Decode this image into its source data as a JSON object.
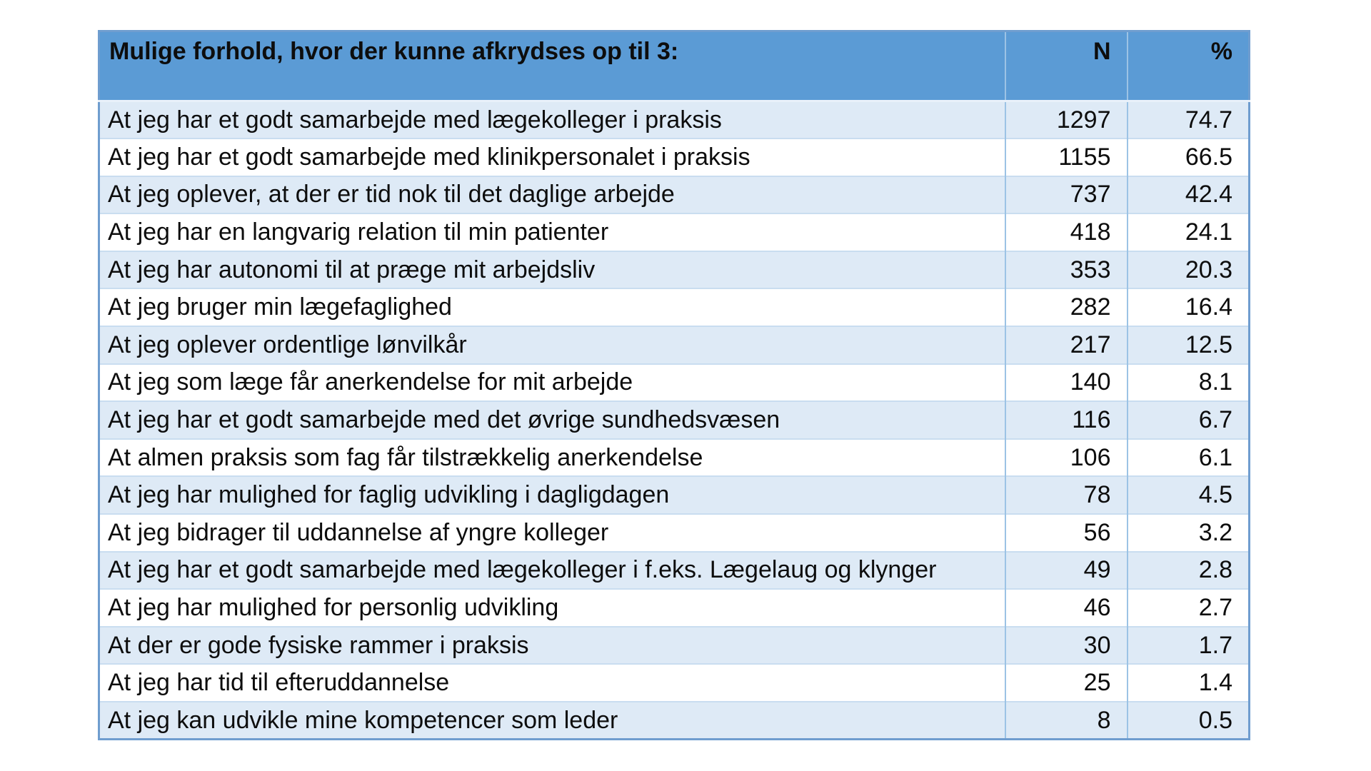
{
  "table": {
    "header": {
      "label": "Mulige forhold, hvor der kunne afkrydses op til 3:",
      "n": "N",
      "pct": "%"
    },
    "rows": [
      {
        "label": "At jeg har et godt samarbejde med lægekolleger i praksis",
        "n": "1297",
        "pct": "74.7"
      },
      {
        "label": "At jeg har et godt samarbejde med klinikpersonalet i praksis",
        "n": "1155",
        "pct": "66.5"
      },
      {
        "label": "At jeg oplever, at der er tid nok til det daglige arbejde",
        "n": "737",
        "pct": "42.4"
      },
      {
        "label": "At jeg har en langvarig relation til min patienter",
        "n": "418",
        "pct": "24.1"
      },
      {
        "label": "At jeg har autonomi til at præge mit arbejdsliv",
        "n": "353",
        "pct": "20.3"
      },
      {
        "label": "At jeg bruger min lægefaglighed",
        "n": "282",
        "pct": "16.4"
      },
      {
        "label": "At jeg oplever ordentlige lønvilkår",
        "n": "217",
        "pct": "12.5"
      },
      {
        "label": "At jeg som læge får anerkendelse for mit arbejde",
        "n": "140",
        "pct": "8.1"
      },
      {
        "label": "At jeg har et godt samarbejde med det øvrige sundhedsvæsen",
        "n": "116",
        "pct": "6.7"
      },
      {
        "label": "At almen praksis som fag får tilstrækkelig anerkendelse",
        "n": "106",
        "pct": "6.1"
      },
      {
        "label": "At jeg har mulighed for faglig udvikling i dagligdagen",
        "n": "78",
        "pct": "4.5"
      },
      {
        "label": "At jeg bidrager til uddannelse af yngre kolleger",
        "n": "56",
        "pct": "3.2"
      },
      {
        "label": "At jeg har et godt samarbejde med lægekolleger i f.eks. Lægelaug og klynger",
        "n": "49",
        "pct": "2.8"
      },
      {
        "label": "At jeg har mulighed for personlig udvikling",
        "n": "46",
        "pct": "2.7"
      },
      {
        "label": "At der er gode fysiske rammer i praksis",
        "n": "30",
        "pct": "1.7"
      },
      {
        "label": "At jeg har tid til efteruddannelse",
        "n": "25",
        "pct": "1.4"
      },
      {
        "label": "At jeg kan udvikle mine kompetencer som leder",
        "n": "8",
        "pct": "0.5"
      }
    ]
  },
  "colors": {
    "header_bg": "#5b9bd5",
    "band_bg": "#deeaf6",
    "alt_bg": "#ffffff",
    "border_inner": "#9cc3e5",
    "border_row": "#c9ddf0",
    "border_outer": "#6f9dcf",
    "text": "#0d0d0d"
  },
  "chart_data": {
    "type": "table",
    "title": "Mulige forhold, hvor der kunne afkrydses op til 3:",
    "columns": [
      "Mulige forhold, hvor der kunne afkrydses op til 3:",
      "N",
      "%"
    ],
    "categories": [
      "At jeg har et godt samarbejde med lægekolleger i praksis",
      "At jeg har et godt samarbejde med klinikpersonalet i praksis",
      "At jeg oplever, at der er tid nok til det daglige arbejde",
      "At jeg har en langvarig relation til min patienter",
      "At jeg har autonomi til at præge mit arbejdsliv",
      "At jeg bruger min lægefaglighed",
      "At jeg oplever ordentlige lønvilkår",
      "At jeg som læge får anerkendelse for mit arbejde",
      "At jeg har et godt samarbejde med det øvrige sundhedsvæsen",
      "At almen praksis som fag får tilstrækkelig anerkendelse",
      "At jeg har mulighed for faglig udvikling i dagligdagen",
      "At jeg bidrager til uddannelse af yngre kolleger",
      "At jeg har et godt samarbejde med lægekolleger i f.eks. Lægelaug og klynger",
      "At jeg har mulighed for personlig udvikling",
      "At der er gode fysiske rammer i praksis",
      "At jeg har tid til efteruddannelse",
      "At jeg kan udvikle mine kompetencer som leder"
    ],
    "series": [
      {
        "name": "N",
        "values": [
          1297,
          1155,
          737,
          418,
          353,
          282,
          217,
          140,
          116,
          106,
          78,
          56,
          49,
          46,
          30,
          25,
          8
        ]
      },
      {
        "name": "%",
        "values": [
          74.7,
          66.5,
          42.4,
          24.1,
          20.3,
          16.4,
          12.5,
          8.1,
          6.7,
          6.1,
          4.5,
          3.2,
          2.8,
          2.7,
          1.7,
          1.4,
          0.5
        ]
      }
    ]
  }
}
